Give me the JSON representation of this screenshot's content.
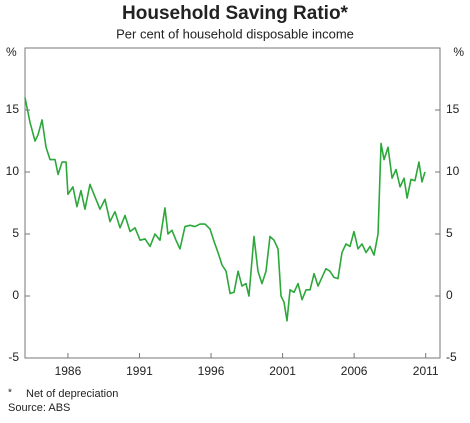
{
  "chart_data": {
    "type": "line",
    "title": "Household Saving Ratio*",
    "subtitle": "Per cent of household disposable income",
    "y_unit": "%",
    "footnote_marker": "*",
    "footnote": "Net of depreciation",
    "source": "Source: ABS",
    "xlim": [
      1983.5,
      2012.5
    ],
    "xticks": [
      {
        "value": 1986.5,
        "label": "1986"
      },
      {
        "value": 1991.5,
        "label": "1991"
      },
      {
        "value": 1996.5,
        "label": "1996"
      },
      {
        "value": 2001.5,
        "label": "2001"
      },
      {
        "value": 2006.5,
        "label": "2006"
      },
      {
        "value": 2011.5,
        "label": "2011"
      }
    ],
    "ylim": [
      -5,
      20
    ],
    "yticks": [
      -5,
      0,
      5,
      10,
      15
    ],
    "grid": false,
    "color": "#2ca83a",
    "x": [
      1983.5,
      1983.85,
      1984.2,
      1984.41,
      1984.69,
      1984.97,
      1985.25,
      1985.6,
      1985.81,
      1986.09,
      1986.37,
      1986.5,
      1986.85,
      1987.13,
      1987.41,
      1987.69,
      1988.04,
      1988.39,
      1988.74,
      1989.09,
      1989.44,
      1989.79,
      1990.14,
      1990.49,
      1990.84,
      1991.19,
      1991.54,
      1991.89,
      1992.24,
      1992.58,
      1992.93,
      1993.28,
      1993.49,
      1993.77,
      1994.05,
      1994.33,
      1994.68,
      1995.03,
      1995.38,
      1995.73,
      1996.08,
      1996.43,
      1996.71,
      1996.99,
      1997.27,
      1997.55,
      1997.83,
      1998.11,
      1998.39,
      1998.66,
      1998.94,
      1999.15,
      1999.5,
      1999.78,
      2000.06,
      2000.34,
      2000.62,
      2000.9,
      2001.18,
      2001.39,
      2001.6,
      2001.81,
      2002.02,
      2002.3,
      2002.58,
      2002.86,
      2003.14,
      2003.42,
      2003.7,
      2003.98,
      2004.25,
      2004.53,
      2004.81,
      2005.09,
      2005.37,
      2005.65,
      2005.93,
      2006.21,
      2006.49,
      2006.77,
      2007.05,
      2007.33,
      2007.61,
      2007.89,
      2008.17,
      2008.38,
      2008.59,
      2008.87,
      2009.15,
      2009.43,
      2009.71,
      2009.99,
      2010.2,
      2010.47,
      2010.75,
      2011.03,
      2011.24,
      2011.45
    ],
    "values": [
      16,
      14,
      12.5,
      13,
      14.2,
      12,
      11,
      11,
      9.8,
      10.8,
      10.8,
      8.2,
      8.8,
      7.2,
      8.5,
      7,
      9,
      8,
      7,
      7.8,
      6,
      6.8,
      5.5,
      6.5,
      5.2,
      5.5,
      4.5,
      4.6,
      4,
      5,
      4.5,
      7.1,
      5,
      5.3,
      4.5,
      3.8,
      5.6,
      5.7,
      5.6,
      5.8,
      5.8,
      5.4,
      4.4,
      3.5,
      2.5,
      2,
      0.2,
      0.3,
      2,
      0.8,
      1,
      0,
      4.8,
      2,
      1,
      2,
      4.8,
      4.5,
      3.8,
      0,
      -0.5,
      -2,
      0.5,
      0.3,
      1,
      -0.3,
      0.5,
      0.5,
      1.8,
      0.8,
      1.5,
      2.2,
      2,
      1.5,
      1.4,
      3.5,
      4.2,
      4,
      5.2,
      3.8,
      4.2,
      3.5,
      4,
      3.3,
      5,
      12.3,
      11,
      12,
      9.5,
      10.2,
      8.8,
      9.5,
      7.9,
      9.4,
      9.3,
      10.8,
      9.2,
      10
    ]
  }
}
